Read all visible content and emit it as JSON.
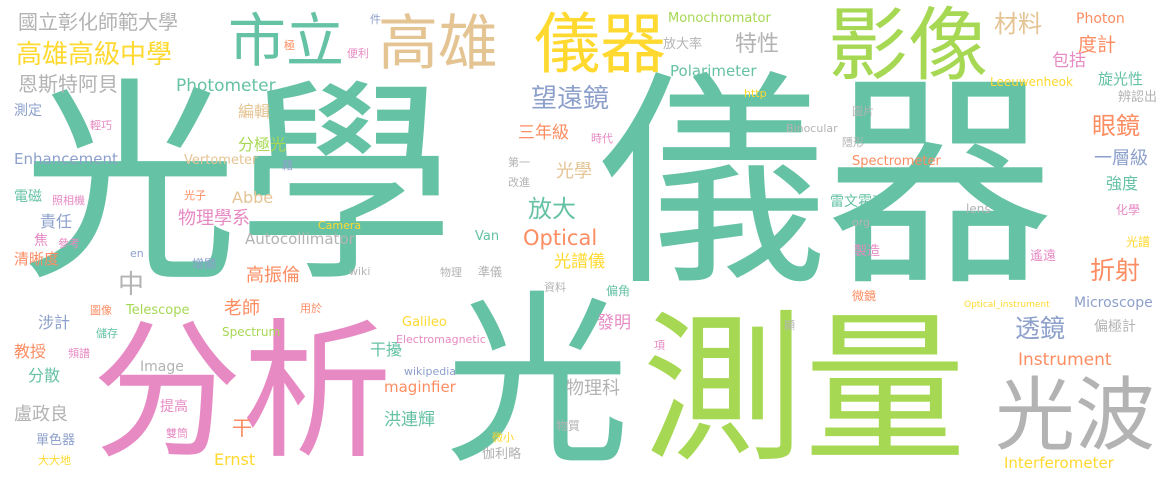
{
  "palette": {
    "teal": "#66c2a5",
    "orange": "#fc8d62",
    "blue": "#8da0cb",
    "pink": "#e78ac3",
    "green": "#a6d854",
    "yellow": "#ffd92f",
    "tan": "#e5c494",
    "gray": "#b3b3b3"
  },
  "words": [
    "光學",
    "儀器",
    "光",
    "分析",
    "測量",
    "影像",
    "高雄",
    "儀器",
    "市立",
    "光波",
    "國立彰化師範大學",
    "高雄高級中學",
    "恩斯特阿貝",
    "測定",
    "Enhancement",
    "電磁",
    "焦",
    "清晰度",
    "極",
    "便利",
    "件",
    "輕巧",
    "照相機",
    "參考",
    "Photometer",
    "編輯",
    "分極光",
    "Vertometer",
    "Abbe",
    "物理學系",
    "老師",
    "責任",
    "中",
    "高振倫",
    "Autocollimator",
    "涉計",
    "教授",
    "分散",
    "盧政良",
    "單色器",
    "大大地",
    "提高",
    "干",
    "干擾",
    "洪連輝",
    "Ernst",
    "圖像",
    "儲存",
    "頻譜",
    "Image",
    "Telescope",
    "Spectrum",
    "用於",
    "增顯",
    "wiki",
    "en",
    "Galileo",
    "Electromagnetic",
    "wikipedia",
    "maginfier",
    "伽利略",
    "雙筒",
    "微小",
    "物質",
    "物理科",
    "發明",
    "偏角",
    "資料",
    "項",
    "準儀",
    "光譜儀",
    "物理",
    "Van",
    "Optical",
    "放大",
    "Camera",
    "光子",
    "改進",
    "第一",
    "光學",
    "時代",
    "三年級",
    "望遠鏡",
    "Polarimeter",
    "特性",
    "放大率",
    "Monochromator",
    "材料",
    "Photon",
    "包括",
    "度計",
    "旋光性",
    "Leeuwenheok",
    "http",
    "圖片",
    "隱形",
    "辨認出",
    "眼鏡",
    "一層級",
    "強度",
    "化學",
    "光譜",
    "Binocular",
    "藉",
    "Spectrometer",
    "雷文霍克",
    "org",
    "lens",
    "製造",
    "遙遠",
    "微鏡",
    "折射",
    "Microscope",
    "透鏡",
    "偏極計",
    "Instrument",
    "顯",
    "Interferometer",
    "Optical_instrument"
  ]
}
